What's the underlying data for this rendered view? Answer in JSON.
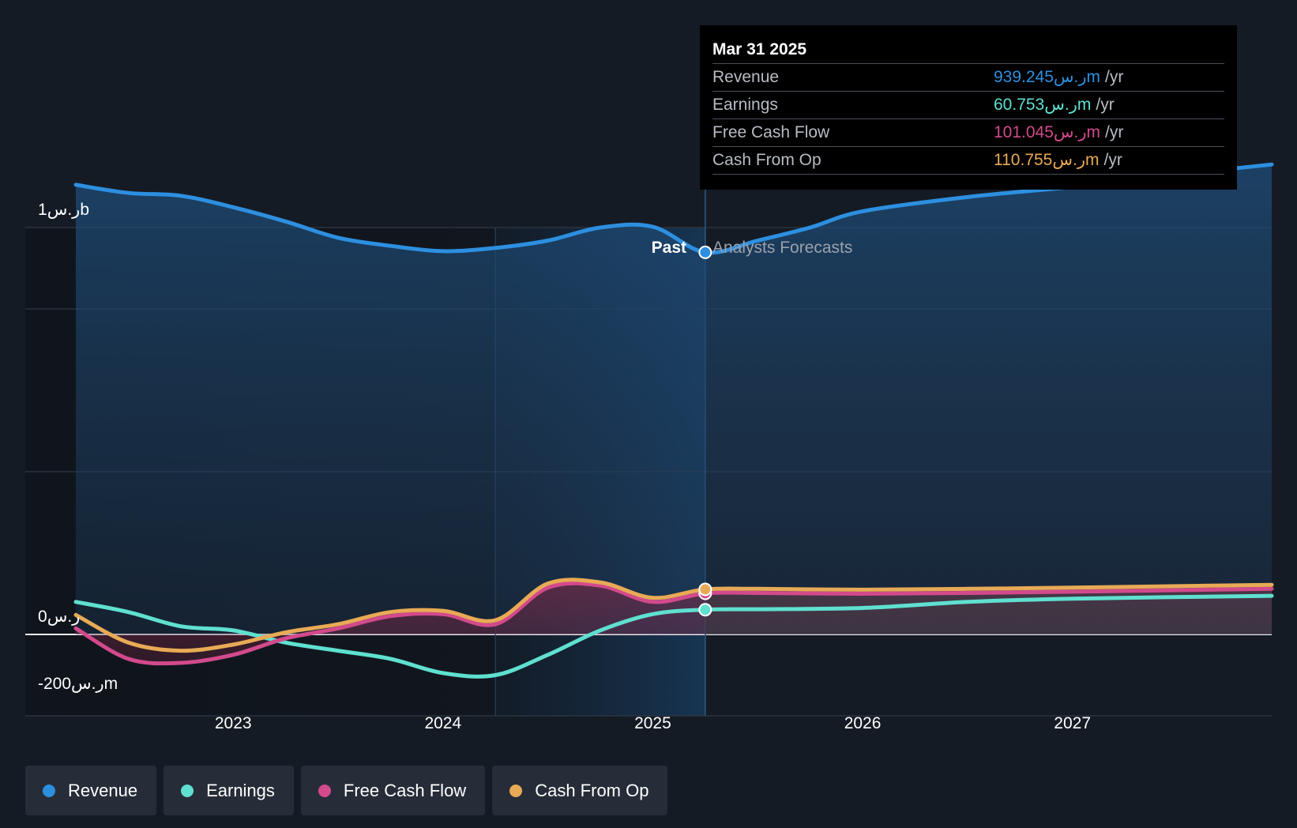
{
  "chart_data": {
    "type": "line",
    "title": "",
    "y_axis": {
      "top_label": "1ر.سb",
      "zero_label": "0ر.س",
      "bottom_label": "-200ر.سm",
      "ylim": [
        -200,
        1000
      ],
      "gridlines": [
        1000,
        800,
        400,
        0,
        -200
      ]
    },
    "x_axis": {
      "xlim": [
        2022.25,
        2027.95
      ],
      "ticks": [
        {
          "value": 2023,
          "label": "2023"
        },
        {
          "value": 2024,
          "label": "2024"
        },
        {
          "value": 2025,
          "label": "2025"
        },
        {
          "value": 2026,
          "label": "2026"
        },
        {
          "value": 2027,
          "label": "2027"
        }
      ]
    },
    "divider": {
      "value": 2025.25,
      "past_label": "Past",
      "forecast_label": "Analysts Forecasts"
    },
    "highlight_start": 2024.25,
    "series": [
      {
        "name": "Revenue",
        "color": "#2d8fe0",
        "fill": true,
        "points": [
          [
            2022.25,
            1105
          ],
          [
            2022.5,
            1085
          ],
          [
            2022.75,
            1078
          ],
          [
            2023.0,
            1050
          ],
          [
            2023.25,
            1015
          ],
          [
            2023.5,
            975
          ],
          [
            2023.75,
            955
          ],
          [
            2024.0,
            942
          ],
          [
            2024.25,
            950
          ],
          [
            2024.5,
            968
          ],
          [
            2024.75,
            1000
          ],
          [
            2025.0,
            1002
          ],
          [
            2025.25,
            939
          ],
          [
            2025.5,
            968
          ],
          [
            2025.75,
            1000
          ],
          [
            2026.0,
            1040
          ],
          [
            2026.5,
            1075
          ],
          [
            2027.0,
            1100
          ],
          [
            2027.5,
            1130
          ],
          [
            2027.95,
            1155
          ]
        ]
      },
      {
        "name": "Earnings",
        "color": "#5fe0d0",
        "fill": false,
        "points": [
          [
            2022.25,
            80
          ],
          [
            2022.5,
            55
          ],
          [
            2022.75,
            20
          ],
          [
            2023.0,
            10
          ],
          [
            2023.25,
            -20
          ],
          [
            2023.5,
            -40
          ],
          [
            2023.75,
            -60
          ],
          [
            2024.0,
            -95
          ],
          [
            2024.25,
            -100
          ],
          [
            2024.5,
            -50
          ],
          [
            2024.75,
            10
          ],
          [
            2025.0,
            50
          ],
          [
            2025.25,
            60.753
          ],
          [
            2025.5,
            62
          ],
          [
            2026.0,
            65
          ],
          [
            2026.5,
            80
          ],
          [
            2027.0,
            88
          ],
          [
            2027.95,
            95
          ]
        ]
      },
      {
        "name": "Free Cash Flow",
        "color": "#d24a8c",
        "fill": true,
        "points": [
          [
            2022.25,
            15
          ],
          [
            2022.5,
            -60
          ],
          [
            2022.75,
            -70
          ],
          [
            2023.0,
            -50
          ],
          [
            2023.25,
            -10
          ],
          [
            2023.5,
            15
          ],
          [
            2023.75,
            45
          ],
          [
            2024.0,
            50
          ],
          [
            2024.25,
            25
          ],
          [
            2024.5,
            115
          ],
          [
            2024.75,
            120
          ],
          [
            2025.0,
            80
          ],
          [
            2025.25,
            101.045
          ],
          [
            2025.5,
            102
          ],
          [
            2026.0,
            100
          ],
          [
            2026.5,
            102
          ],
          [
            2027.0,
            105
          ],
          [
            2027.95,
            112
          ]
        ]
      },
      {
        "name": "Cash From Op",
        "color": "#e8aa55",
        "fill": false,
        "points": [
          [
            2022.25,
            48
          ],
          [
            2022.5,
            -20
          ],
          [
            2022.75,
            -40
          ],
          [
            2023.0,
            -25
          ],
          [
            2023.25,
            5
          ],
          [
            2023.5,
            25
          ],
          [
            2023.75,
            55
          ],
          [
            2024.0,
            58
          ],
          [
            2024.25,
            35
          ],
          [
            2024.5,
            125
          ],
          [
            2024.75,
            128
          ],
          [
            2025.0,
            90
          ],
          [
            2025.25,
            110.755
          ],
          [
            2025.5,
            112
          ],
          [
            2026.0,
            110
          ],
          [
            2026.5,
            112
          ],
          [
            2027.0,
            115
          ],
          [
            2027.95,
            122
          ]
        ]
      }
    ]
  },
  "tooltip": {
    "date": "Mar 31 2025",
    "rows": [
      {
        "label": "Revenue",
        "value": "939.245ر.سm",
        "unit": "/yr",
        "color": "#2d8fe0"
      },
      {
        "label": "Earnings",
        "value": "60.753ر.سm",
        "unit": "/yr",
        "color": "#5fe0d0"
      },
      {
        "label": "Free Cash Flow",
        "value": "101.045ر.سm",
        "unit": "/yr",
        "color": "#d24a8c"
      },
      {
        "label": "Cash From Op",
        "value": "110.755ر.سm",
        "unit": "/yr",
        "color": "#e8aa55"
      }
    ]
  },
  "legend": [
    {
      "label": "Revenue",
      "color": "#2d8fe0"
    },
    {
      "label": "Earnings",
      "color": "#5fe0d0"
    },
    {
      "label": "Free Cash Flow",
      "color": "#d24a8c"
    },
    {
      "label": "Cash From Op",
      "color": "#e8aa55"
    }
  ]
}
